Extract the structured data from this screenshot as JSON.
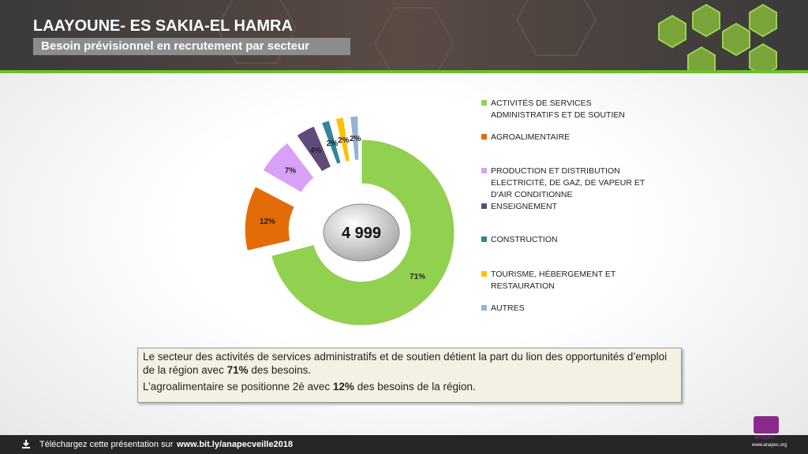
{
  "header": {
    "title": "LAAYOUNE- ES SAKIA-EL HAMRA",
    "subtitle": "Besoin prévisionnel en recrutement par secteur"
  },
  "chart_data": {
    "type": "donut",
    "categories": [
      "ACTIVITÉS DE SERVICES ADMINISTRATIFS ET DE SOUTIEN",
      "AGROALIMENTAIRE",
      "PRODUCTION ET DISTRIBUTION ELECTRICITÉ, DE GAZ, DE VAPEUR ET D'AIR CONDITIONNE",
      "ENSEIGNEMENT",
      "CONSTRUCTION",
      "TOURISME, HÉBERGEMENT ET RESTAURATION",
      "AUTRES"
    ],
    "values": [
      71,
      12,
      7,
      4,
      2,
      2,
      2
    ],
    "value_labels": [
      "71%",
      "12%",
      "7%",
      "4%",
      "2%",
      "2%",
      "2%"
    ],
    "colors": [
      "#92d050",
      "#e36c09",
      "#d9a0f7",
      "#604a7b",
      "#31859c",
      "#ffc000",
      "#95b3d7"
    ],
    "center_label": "4 999"
  },
  "note": {
    "paragraphs": [
      [
        {
          "text": "Le secteur des activités de services administratifs et de soutien détient la part du lion des opportunités d’emploi de la région avec "
        },
        {
          "text": "71%",
          "bold": true
        },
        {
          "text": " des besoins."
        }
      ],
      [
        {
          "text": "L’agroalimentaire se positionne 2è avec "
        },
        {
          "text": "12%",
          "bold": true
        },
        {
          "text": " des besoins de la région."
        }
      ]
    ]
  },
  "footer": {
    "download": "Téléchargez cette présentation sur",
    "link": "www.bit.ly/anapecveille2018",
    "logo": "anapec",
    "site": "www.anapec.org"
  }
}
